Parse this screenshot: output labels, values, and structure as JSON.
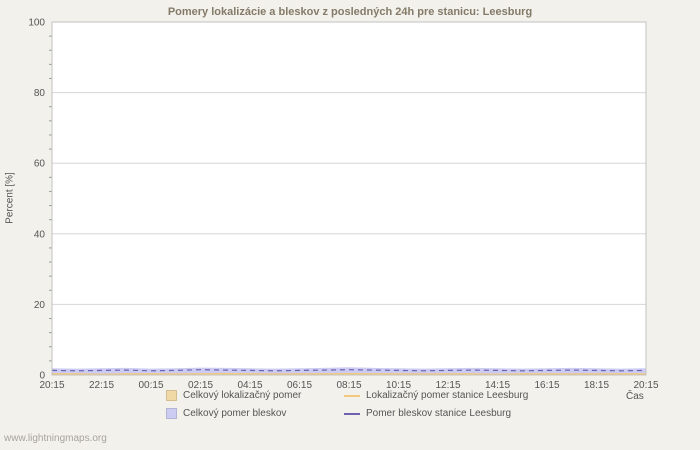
{
  "title": "Pomery lokalizácie a bleskov z posledných 24h pre stanicu: Leesburg",
  "watermark": "www.lightningmaps.org",
  "chart_data": {
    "type": "area+line",
    "title": "Pomery lokalizácie a bleskov z posledných 24h pre stanicu: Leesburg",
    "xlabel": "Čas",
    "ylabel": "Percent  [%]",
    "ylim": [
      0,
      100
    ],
    "yticks": [
      0,
      20,
      40,
      60,
      80,
      100
    ],
    "y_minor_step": 4,
    "grid": "horizontal",
    "legend_position": "bottom",
    "x_labels": [
      "20:15",
      "22:15",
      "00:15",
      "02:15",
      "04:15",
      "06:15",
      "08:15",
      "10:15",
      "12:15",
      "14:15",
      "16:15",
      "18:15",
      "20:15"
    ],
    "series": [
      {
        "name": "Celkový pomer bleskov",
        "type": "area",
        "color": "#ccccf2",
        "values": [
          1.9,
          1.8,
          1.9,
          2.0,
          1.8,
          1.9,
          2.1,
          2.0,
          1.9,
          1.8,
          1.9,
          2.0,
          2.2,
          2.0,
          1.9,
          1.8,
          1.9,
          2.0,
          1.9,
          1.8,
          1.9,
          2.0,
          1.9,
          1.8,
          1.9
        ]
      },
      {
        "name": "Celkový lokalizačný pomer",
        "type": "area",
        "color": "#f0d9a4",
        "values": [
          0.5,
          0.5,
          0.4,
          0.5,
          0.5,
          0.4,
          0.5,
          0.6,
          0.5,
          0.4,
          0.5,
          0.5,
          0.6,
          0.5,
          0.5,
          0.4,
          0.5,
          0.5,
          0.4,
          0.5,
          0.5,
          0.4,
          0.5,
          0.5,
          0.5
        ]
      },
      {
        "name": "Lokalizačný pomer stanice Leesburg",
        "type": "line",
        "color": "#f2c87e",
        "values": [
          0.3,
          0.3,
          0.2,
          0.3,
          0.3,
          0.3,
          0.3,
          0.4,
          0.3,
          0.3,
          0.3,
          0.3,
          0.4,
          0.3,
          0.3,
          0.3,
          0.3,
          0.3,
          0.2,
          0.3,
          0.3,
          0.3,
          0.3,
          0.3,
          0.3
        ]
      },
      {
        "name": "Pomer bleskov stanice Leesburg",
        "type": "line",
        "color": "#6e62b0",
        "dash": "5 4",
        "values": [
          1.3,
          1.2,
          1.3,
          1.4,
          1.2,
          1.3,
          1.5,
          1.4,
          1.3,
          1.2,
          1.3,
          1.4,
          1.5,
          1.4,
          1.3,
          1.2,
          1.3,
          1.4,
          1.3,
          1.2,
          1.3,
          1.4,
          1.3,
          1.2,
          1.3
        ]
      }
    ]
  }
}
